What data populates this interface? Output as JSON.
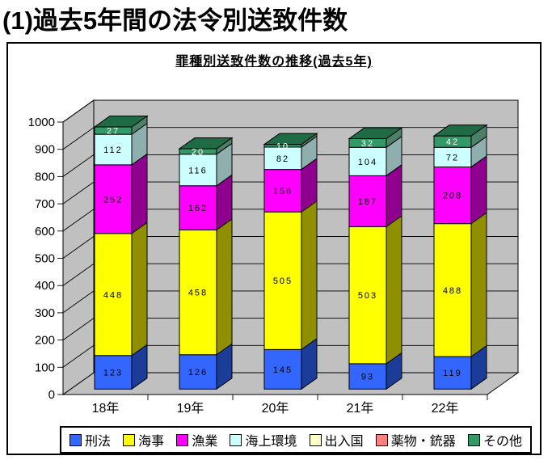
{
  "page_title": "(1)過去5年間の法令別送致件数",
  "chart": {
    "title": "罪種別送致件数の推移(過去5年)"
  },
  "chart_data": {
    "type": "bar",
    "stacked": true,
    "effect": "3d",
    "title": "罪種別送致件数の推移(過去5年)",
    "categories": [
      "18年",
      "19年",
      "20年",
      "21年",
      "22年"
    ],
    "series": [
      {
        "name": "刑法",
        "color": "#3366FF",
        "side": "#1B3D99",
        "top": "#2952CC",
        "label_color": "#000000",
        "values": [
          123,
          126,
          145,
          93,
          119
        ]
      },
      {
        "name": "海事",
        "color": "#FFFF00",
        "side": "#8F8F00",
        "top": "#CCCC00",
        "label_color": "#000000",
        "values": [
          448,
          458,
          505,
          503,
          488
        ]
      },
      {
        "name": "漁業",
        "color": "#FF00FF",
        "side": "#8F008F",
        "top": "#CC00CC",
        "label_color": "#000000",
        "values": [
          252,
          162,
          156,
          187,
          208
        ]
      },
      {
        "name": "海上環境",
        "color": "#CCFFFF",
        "side": "#8FAFAF",
        "top": "#A3CCCC",
        "label_color": "#000000",
        "values": [
          112,
          116,
          82,
          104,
          72
        ]
      },
      {
        "name": "出入国",
        "color": "#FFFFCC",
        "side": "#8F8F73",
        "top": "#CCCC99",
        "label_color": "#000000",
        "values": [
          0,
          0,
          0,
          0,
          0
        ]
      },
      {
        "name": "薬物・銃器",
        "color": "#FF8080",
        "side": "#8F4848",
        "top": "#CC6666",
        "label_color": "#000000",
        "values": [
          0,
          0,
          0,
          0,
          0
        ]
      },
      {
        "name": "その他",
        "color": "#339966",
        "side": "#4D8069",
        "top": "#1E6B45",
        "label_color": "#FFFFFF",
        "values": [
          27,
          20,
          10,
          32,
          42
        ]
      }
    ],
    "ylim": [
      0,
      1000
    ],
    "ytick_step": 100,
    "grid": true,
    "legend_position": "bottom",
    "wall_color": "#C0C0C0"
  }
}
